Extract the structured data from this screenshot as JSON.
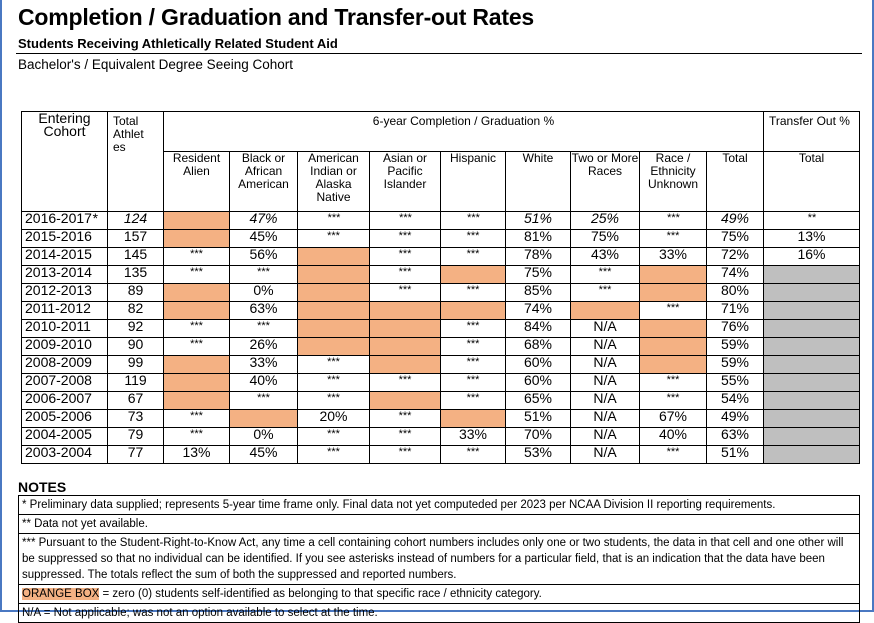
{
  "title": "Completion / Graduation and Transfer-out Rates",
  "subtitle": "Students Receiving Athletically Related Student Aid",
  "cohort_label": "Bachelor's / Equivalent Degree Seeing Cohort",
  "table": {
    "header": {
      "entering_cohort": "Entering Cohort",
      "total_athletes": "Total Athlet es",
      "group_completion": "6-year Completion / Graduation %",
      "group_transfer": "Transfer Out %",
      "columns": [
        "Resident Alien",
        "Black or African American",
        "American Indian or Alaska Native",
        "Asian or Pacific Islander",
        "Hispanic",
        "White",
        "Two or More Races",
        "Race / Ethnicity Unknown",
        "Total"
      ],
      "transfer_total": "Total"
    },
    "highlight_colors": {
      "orange": "#f4b183",
      "gray": "#bfbfbf"
    },
    "legend": "null cell = orange box (zero students); null transfer = gray (not shown)",
    "rows": [
      {
        "cohort": "2016-2017",
        "marker": "*",
        "italic": true,
        "total": "124",
        "values": [
          null,
          "47%",
          "***",
          "***",
          "***",
          "51%",
          "25%",
          "***",
          "49%"
        ],
        "transfer": "**"
      },
      {
        "cohort": "2015-2016",
        "total": "157",
        "values": [
          null,
          "45%",
          "***",
          "***",
          "***",
          "81%",
          "75%",
          "***",
          "75%"
        ],
        "transfer": "13%"
      },
      {
        "cohort": "2014-2015",
        "total": "145",
        "values": [
          "***",
          "56%",
          null,
          "***",
          "***",
          "78%",
          "43%",
          "33%",
          "72%"
        ],
        "transfer": "16%"
      },
      {
        "cohort": "2013-2014",
        "total": "135",
        "values": [
          "***",
          "***",
          null,
          "***",
          null,
          "75%",
          "***",
          null,
          "74%"
        ],
        "transfer": null
      },
      {
        "cohort": "2012-2013",
        "total": "89",
        "values": [
          null,
          "0%",
          null,
          "***",
          "***",
          "85%",
          "***",
          null,
          "80%"
        ],
        "transfer": null
      },
      {
        "cohort": "2011-2012",
        "total": "82",
        "values": [
          null,
          "63%",
          null,
          null,
          null,
          "74%",
          null,
          "***",
          "71%"
        ],
        "transfer": null
      },
      {
        "cohort": "2010-2011",
        "total": "92",
        "values": [
          "***",
          "***",
          null,
          null,
          "***",
          "84%",
          "N/A",
          null,
          "76%"
        ],
        "transfer": null
      },
      {
        "cohort": "2009-2010",
        "total": "90",
        "values": [
          "***",
          "26%",
          null,
          null,
          "***",
          "68%",
          "N/A",
          null,
          "59%"
        ],
        "transfer": null
      },
      {
        "cohort": "2008-2009",
        "total": "99",
        "values": [
          null,
          "33%",
          "***",
          null,
          "***",
          "60%",
          "N/A",
          null,
          "59%"
        ],
        "transfer": null
      },
      {
        "cohort": "2007-2008",
        "total": "119",
        "values": [
          null,
          "40%",
          "***",
          "***",
          "***",
          "60%",
          "N/A",
          "***",
          "55%"
        ],
        "transfer": null
      },
      {
        "cohort": "2006-2007",
        "total": "67",
        "values": [
          null,
          "***",
          "***",
          null,
          "***",
          "65%",
          "N/A",
          "***",
          "54%"
        ],
        "transfer": null
      },
      {
        "cohort": "2005-2006",
        "total": "73",
        "values": [
          "***",
          null,
          "20%",
          "***",
          null,
          "51%",
          "N/A",
          "67%",
          "49%"
        ],
        "transfer": null
      },
      {
        "cohort": "2004-2005",
        "total": "79",
        "values": [
          "***",
          "0%",
          "***",
          "***",
          "33%",
          "70%",
          "N/A",
          "40%",
          "63%"
        ],
        "transfer": null
      },
      {
        "cohort": "2003-2004",
        "total": "77",
        "values": [
          "13%",
          "45%",
          "***",
          "***",
          "***",
          "53%",
          "N/A",
          "***",
          "51%"
        ],
        "transfer": null
      }
    ]
  },
  "notes": {
    "heading": "NOTES",
    "items": [
      "* Preliminary data supplied; represents 5-year time frame only. Final data not yet computeded per 2023 per NCAA Division II reporting requirements.",
      "** Data not yet available.",
      "*** Pursuant to the Student-Right-to-Know Act, any time a cell containing cohort numbers includes only one or two students, the data in that cell and one other will be suppressed so that no individual can be identified. If you see asterisks instead of numbers for a particular field, that is an indication that the data have been suppressed. The totals reflect the sum of both the suppressed and reported numbers."
    ],
    "orange_box_label": "ORANGE BOX",
    "orange_box_text": " = zero (0) students self-identified as belonging to that specific race / ethnicity category.",
    "na_note": "N/A = Not applicable; was not an option available to select at the time."
  }
}
